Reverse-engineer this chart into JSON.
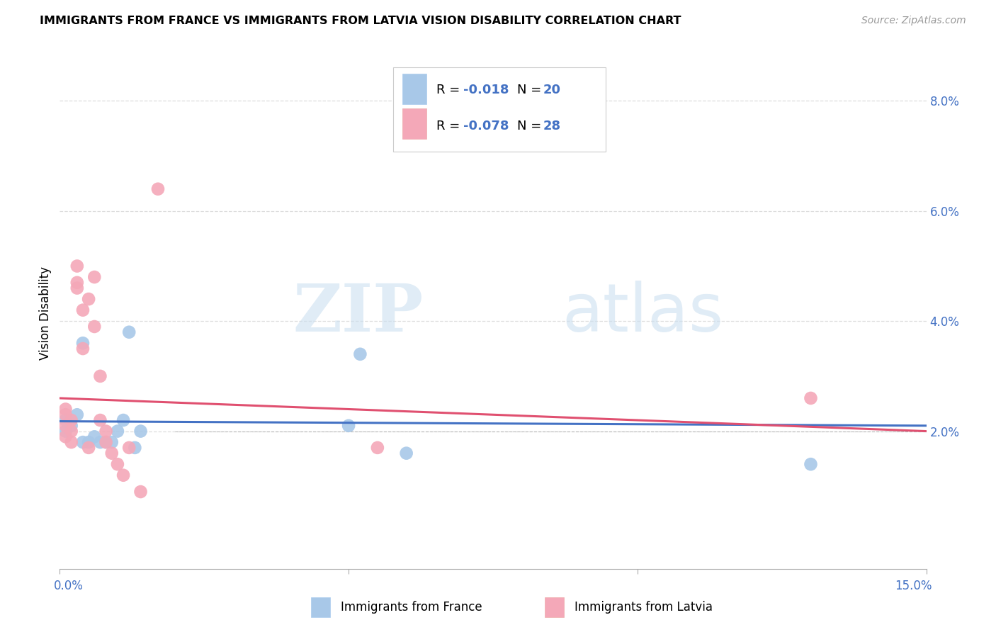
{
  "title": "IMMIGRANTS FROM FRANCE VS IMMIGRANTS FROM LATVIA VISION DISABILITY CORRELATION CHART",
  "source": "Source: ZipAtlas.com",
  "ylabel": "Vision Disability",
  "ylabel_right_ticks": [
    "8.0%",
    "6.0%",
    "4.0%",
    "2.0%"
  ],
  "ylabel_right_vals": [
    0.08,
    0.06,
    0.04,
    0.02
  ],
  "xlim": [
    0.0,
    0.15
  ],
  "ylim": [
    -0.005,
    0.088
  ],
  "france_color": "#a8c8e8",
  "latvia_color": "#f4a8b8",
  "france_line_color": "#4472c4",
  "latvia_line_color": "#e05070",
  "france_scatter_x": [
    0.001,
    0.001,
    0.002,
    0.003,
    0.004,
    0.004,
    0.005,
    0.006,
    0.007,
    0.008,
    0.009,
    0.01,
    0.011,
    0.012,
    0.013,
    0.014,
    0.05,
    0.052,
    0.06,
    0.13
  ],
  "france_scatter_y": [
    0.022,
    0.02,
    0.021,
    0.023,
    0.036,
    0.018,
    0.018,
    0.019,
    0.018,
    0.018,
    0.018,
    0.02,
    0.022,
    0.038,
    0.017,
    0.02,
    0.021,
    0.034,
    0.016,
    0.014
  ],
  "latvia_scatter_x": [
    0.001,
    0.001,
    0.001,
    0.001,
    0.002,
    0.002,
    0.002,
    0.003,
    0.003,
    0.003,
    0.004,
    0.004,
    0.005,
    0.005,
    0.006,
    0.006,
    0.007,
    0.007,
    0.008,
    0.008,
    0.009,
    0.01,
    0.011,
    0.012,
    0.014,
    0.017,
    0.055,
    0.13
  ],
  "latvia_scatter_y": [
    0.024,
    0.023,
    0.021,
    0.019,
    0.022,
    0.02,
    0.018,
    0.047,
    0.046,
    0.05,
    0.042,
    0.035,
    0.044,
    0.017,
    0.048,
    0.039,
    0.03,
    0.022,
    0.02,
    0.018,
    0.016,
    0.014,
    0.012,
    0.017,
    0.009,
    0.064,
    0.017,
    0.026
  ],
  "france_trend_x": [
    0.0,
    0.15
  ],
  "france_trend_y": [
    0.0218,
    0.021
  ],
  "latvia_trend_x": [
    0.0,
    0.15
  ],
  "latvia_trend_y": [
    0.026,
    0.02
  ],
  "watermark_zip": "ZIP",
  "watermark_atlas": "atlas",
  "dot_size": 180,
  "grid_color": "#dddddd",
  "title_fontsize": 11.5,
  "source_color": "#999999",
  "right_tick_color": "#4472c4",
  "legend_R_label": "R = ",
  "legend_N_label": "N = ",
  "legend_france_R": "-0.018",
  "legend_france_N": "20",
  "legend_latvia_R": "-0.078",
  "legend_latvia_N": "28"
}
